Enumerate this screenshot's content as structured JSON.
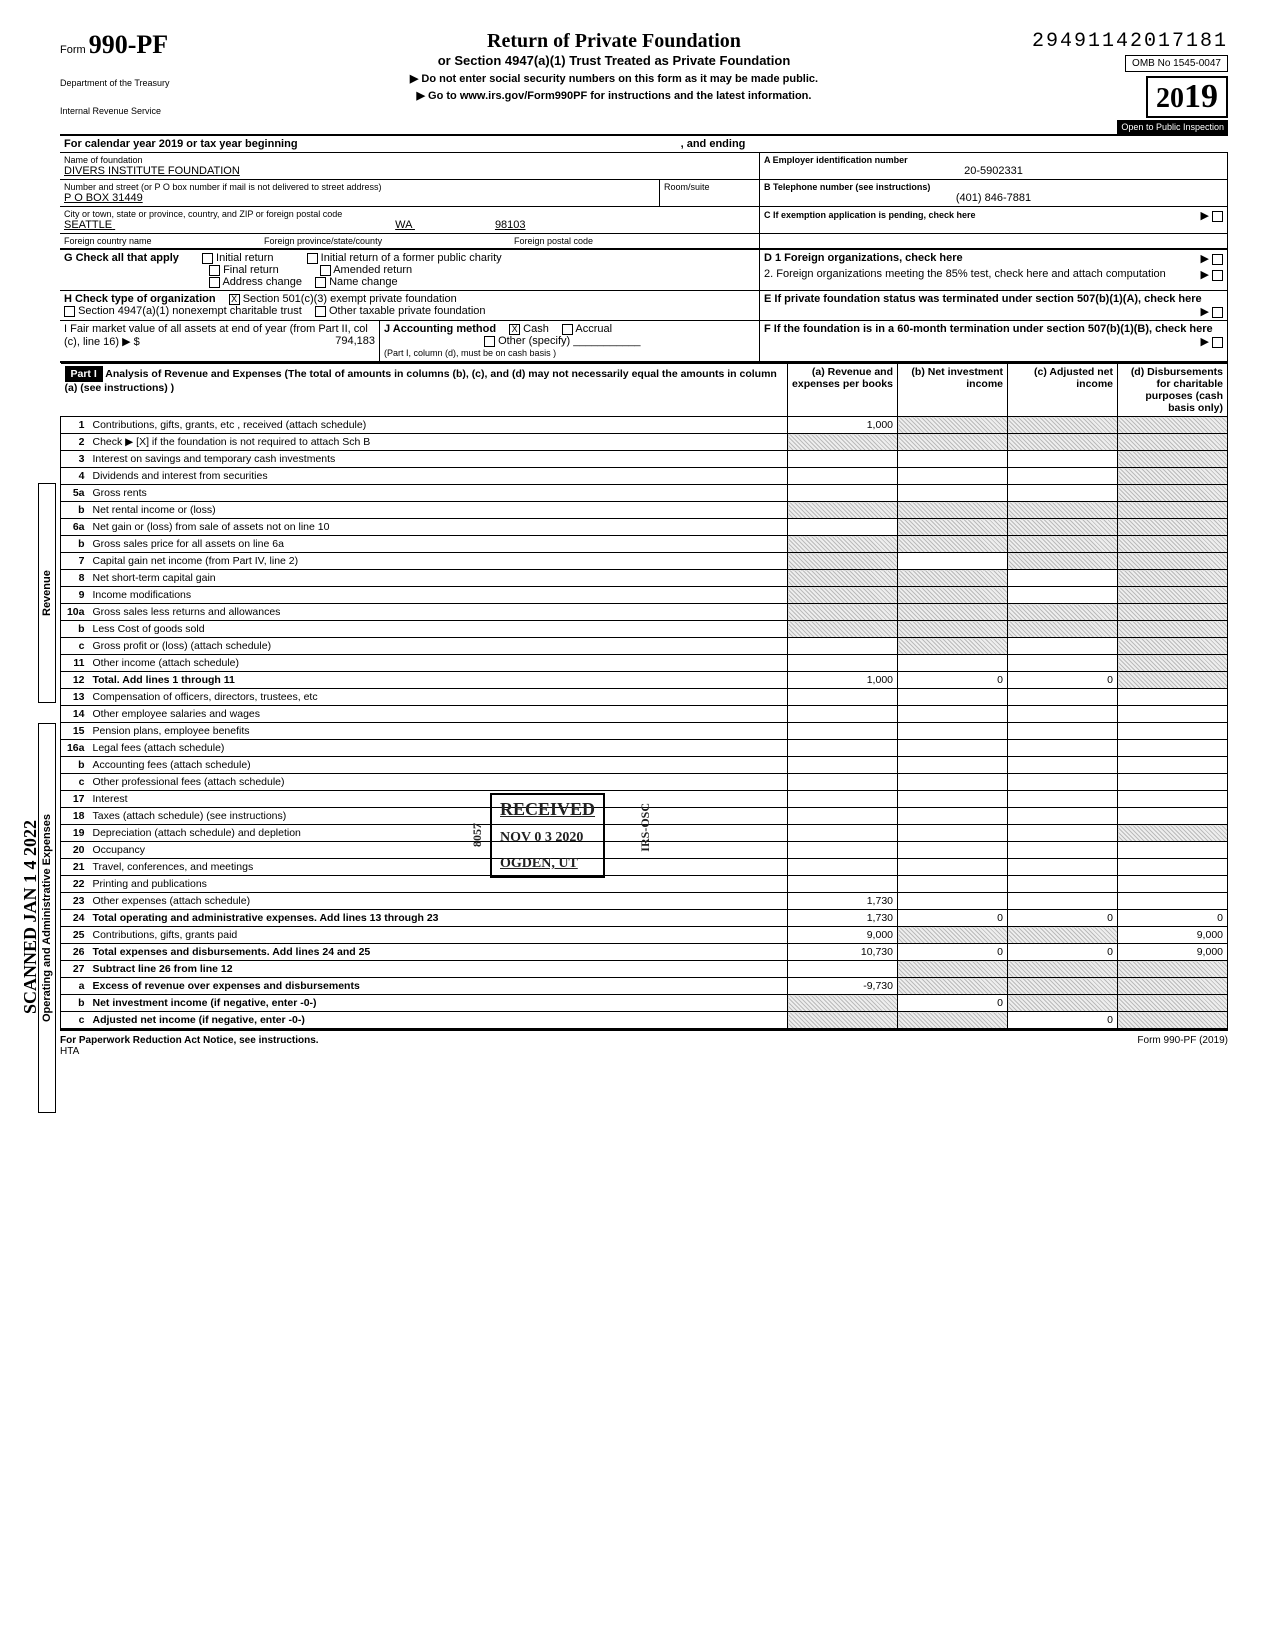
{
  "dln": "29491142017181",
  "form_number_prefix": "Form",
  "form_number": "990-PF",
  "dept1": "Department of the Treasury",
  "dept2": "Internal Revenue Service",
  "title": "Return of Private Foundation",
  "subtitle": "or Section 4947(a)(1) Trust Treated as Private Foundation",
  "arrow1": "Do not enter social security numbers on this form as it may be made public.",
  "arrow2": "Go to www.irs.gov/Form990PF for instructions and the latest information.",
  "omb": "OMB No 1545-0047",
  "year_prefix": "20",
  "year_suffix": "19",
  "inspect": "Open to Public Inspection",
  "cal_line": "For calendar year 2019 or tax year beginning",
  "cal_end": ", and ending",
  "name_label": "Name of foundation",
  "name": "DIVERS INSTITUTE FOUNDATION",
  "ein_label": "A Employer identification number",
  "ein": "20-5902331",
  "addr_label": "Number and street (or P O  box number if mail is not delivered to street address)",
  "room_label": "Room/suite",
  "addr": "P O BOX 31449",
  "tel_label": "B Telephone number (see instructions)",
  "tel": "(401) 846-7881",
  "city_label": "City or town, state or province, country, and ZIP or foreign postal code",
  "city": "SEATTLE",
  "state": "WA",
  "zip": "98103",
  "fcountry_label": "Foreign country name",
  "fprov_label": "Foreign province/state/county",
  "fpostal_label": "Foreign postal code",
  "c_label": "C  If exemption application is pending, check here",
  "g_label": "G   Check all that apply",
  "g_opts": [
    "Initial return",
    "Final return",
    "Address change",
    "Initial return of a former public charity",
    "Amended return",
    "Name change"
  ],
  "d1": "D  1  Foreign organizations, check here",
  "d2": "2. Foreign organizations meeting the 85% test, check here and attach computation",
  "h_label": "H   Check type of organization",
  "h_opt1": "Section 501(c)(3) exempt private foundation",
  "h_opt2": "Section 4947(a)(1) nonexempt charitable trust",
  "h_opt3": "Other taxable private foundation",
  "e_label": "E  If private foundation status was terminated under section 507(b)(1)(A), check here",
  "i_label": "I    Fair market value of all assets at end of year (from Part II, col (c), line 16) ▶ $",
  "i_val": "794,183",
  "j_label": "J   Accounting method",
  "j_cash": "Cash",
  "j_accrual": "Accrual",
  "j_other": "Other (specify)",
  "j_note": "(Part I, column (d), must be on cash basis )",
  "f_label": "F  If the foundation is in a 60-month termination under section 507(b)(1)(B), check here",
  "part1_bar": "Part I",
  "part1_title": "Analysis of Revenue and Expenses (The total of amounts in columns (b), (c), and (d) may not necessarily equal the amounts in column (a) (see instructions) )",
  "col_a": "(a) Revenue and expenses per books",
  "col_b": "(b) Net investment income",
  "col_c": "(c) Adjusted net income",
  "col_d": "(d) Disbursements for charitable purposes (cash basis only)",
  "vert_rev": "Revenue",
  "vert_exp": "Operating and Administrative Expenses",
  "rows": [
    {
      "n": "1",
      "d": "Contributions, gifts, grants, etc , received (attach schedule)",
      "a": "1,000",
      "shade_b": true,
      "shade_c": true,
      "shade_d": true
    },
    {
      "n": "2",
      "d": "Check ▶ [X] if the foundation is not required to attach Sch  B",
      "shade_a": true,
      "shade_b": true,
      "shade_c": true,
      "shade_d": true
    },
    {
      "n": "3",
      "d": "Interest on savings and temporary cash investments",
      "shade_d": true
    },
    {
      "n": "4",
      "d": "Dividends and interest from securities",
      "shade_d": true
    },
    {
      "n": "5a",
      "d": "Gross rents",
      "shade_d": true
    },
    {
      "n": "b",
      "d": "Net rental income or (loss)",
      "shade_a": true,
      "shade_b": true,
      "shade_c": true,
      "shade_d": true
    },
    {
      "n": "6a",
      "d": "Net gain or (loss) from sale of assets not on line 10",
      "shade_b": true,
      "shade_c": true,
      "shade_d": true
    },
    {
      "n": "b",
      "d": "Gross sales price for all assets on line 6a",
      "shade_a": true,
      "shade_b": true,
      "shade_c": true,
      "shade_d": true
    },
    {
      "n": "7",
      "d": "Capital gain net income (from Part IV, line 2)",
      "shade_a": true,
      "shade_c": true,
      "shade_d": true
    },
    {
      "n": "8",
      "d": "Net short-term capital gain",
      "shade_a": true,
      "shade_b": true,
      "shade_d": true
    },
    {
      "n": "9",
      "d": "Income modifications",
      "shade_a": true,
      "shade_b": true,
      "shade_d": true
    },
    {
      "n": "10a",
      "d": "Gross sales less returns and allowances",
      "shade_a": true,
      "shade_b": true,
      "shade_c": true,
      "shade_d": true
    },
    {
      "n": "b",
      "d": "Less  Cost of goods sold",
      "shade_a": true,
      "shade_b": true,
      "shade_c": true,
      "shade_d": true
    },
    {
      "n": "c",
      "d": "Gross profit or (loss) (attach schedule)",
      "shade_b": true,
      "shade_d": true
    },
    {
      "n": "11",
      "d": "Other income (attach schedule)",
      "shade_d": true
    },
    {
      "n": "12",
      "d": "Total. Add lines 1 through 11",
      "bold": true,
      "a": "1,000",
      "b": "0",
      "c": "0",
      "shade_d": true
    },
    {
      "n": "13",
      "d": "Compensation of officers, directors, trustees, etc"
    },
    {
      "n": "14",
      "d": "Other employee salaries and wages"
    },
    {
      "n": "15",
      "d": "Pension plans, employee benefits"
    },
    {
      "n": "16a",
      "d": "Legal fees (attach schedule)"
    },
    {
      "n": "b",
      "d": "Accounting fees (attach schedule)"
    },
    {
      "n": "c",
      "d": "Other professional fees (attach schedule)"
    },
    {
      "n": "17",
      "d": "Interest"
    },
    {
      "n": "18",
      "d": "Taxes (attach schedule) (see instructions)"
    },
    {
      "n": "19",
      "d": "Depreciation (attach schedule) and depletion",
      "shade_d": true
    },
    {
      "n": "20",
      "d": "Occupancy"
    },
    {
      "n": "21",
      "d": "Travel, conferences, and meetings"
    },
    {
      "n": "22",
      "d": "Printing and publications"
    },
    {
      "n": "23",
      "d": "Other expenses (attach schedule)",
      "a": "1,730"
    },
    {
      "n": "24",
      "d": "Total operating and administrative expenses. Add lines 13 through 23",
      "bold": true,
      "a": "1,730",
      "b": "0",
      "c": "0",
      "dd": "0"
    },
    {
      "n": "25",
      "d": "Contributions, gifts, grants paid",
      "a": "9,000",
      "shade_b": true,
      "shade_c": true,
      "dd": "9,000"
    },
    {
      "n": "26",
      "d": "Total expenses and disbursements. Add lines 24 and 25",
      "bold": true,
      "a": "10,730",
      "b": "0",
      "c": "0",
      "dd": "9,000"
    },
    {
      "n": "27",
      "d": "Subtract line 26 from line 12",
      "bold": true,
      "shade_b": true,
      "shade_c": true,
      "shade_d": true
    },
    {
      "n": "a",
      "d": "Excess of revenue over expenses and disbursements",
      "bold": true,
      "a": "-9,730",
      "shade_b": true,
      "shade_c": true,
      "shade_d": true
    },
    {
      "n": "b",
      "d": "Net investment income (if negative, enter -0-)",
      "bold": true,
      "shade_a": true,
      "b": "0",
      "shade_c": true,
      "shade_d": true
    },
    {
      "n": "c",
      "d": "Adjusted net income (if negative, enter -0-)",
      "bold": true,
      "shade_a": true,
      "shade_b": true,
      "c": "0",
      "shade_d": true
    }
  ],
  "stamp_received": "RECEIVED",
  "stamp_date": "NOV 0 3 2020",
  "stamp_ogden": "OGDEN, UT",
  "stamp_8057": "8057",
  "stamp_irs": "IRS-OSC",
  "scanned": "SCANNED JAN 1 4 2022",
  "footer_left": "For Paperwork Reduction Act Notice, see instructions.",
  "footer_hta": "HTA",
  "footer_right": "Form 990-PF (2019)"
}
